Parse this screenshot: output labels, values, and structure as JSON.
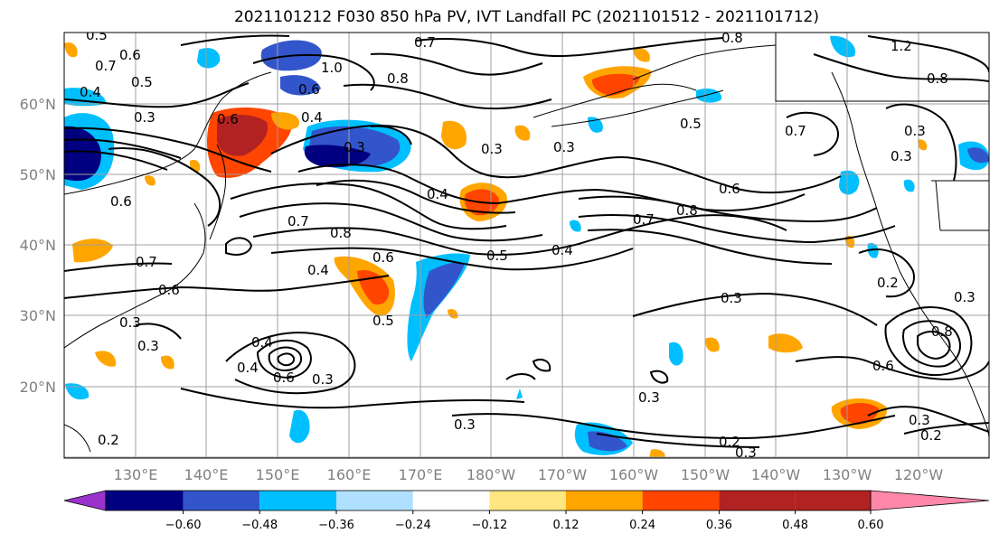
{
  "title": "2021101212 F030 850 hPa PV, IVT Landfall PC (2021101512 - 2021101712)",
  "lat_labels": [
    "60°N",
    "50°N",
    "40°N",
    "30°N",
    "20°N"
  ],
  "lon_labels": [
    "130°E",
    "140°E",
    "150°E",
    "160°E",
    "170°E",
    "180°W",
    "170°W",
    "160°W",
    "150°W",
    "140°W",
    "130°W",
    "120°W"
  ],
  "colorbar": {
    "tick_labels": [
      "−0.60",
      "−0.48",
      "−0.36",
      "−0.24",
      "−0.12",
      "0.12",
      "0.24",
      "0.36",
      "0.48",
      "0.60"
    ],
    "colors": [
      "#9933cc",
      "#000080",
      "#3355cc",
      "#00bfff",
      "#b0e0ff",
      "#ffffff",
      "#ffe680",
      "#ffa500",
      "#ff4500",
      "#b22222",
      "#ff88aa"
    ]
  },
  "contour_labels": [
    "0.5",
    "0.7",
    "0.6",
    "0.4",
    "0.5",
    "1.0",
    "0.6",
    "0.8",
    "0.7",
    "0.8",
    "1.2",
    "0.3",
    "0.6",
    "0.4",
    "0.3",
    "0.3",
    "0.3",
    "0.3",
    "0.5",
    "0.7",
    "0.3",
    "0.8",
    "0.6",
    "0.4",
    "0.6",
    "0.7",
    "0.8",
    "0.7",
    "0.8",
    "0.7",
    "0.4",
    "0.6",
    "0.5",
    "0.3",
    "0.4",
    "0.3",
    "0.4",
    "0.4",
    "0.5",
    "0.6",
    "0.3",
    "0.2",
    "0.3",
    "0.6",
    "0.8",
    "0.3",
    "0.3",
    "0.3",
    "0.2",
    "0.3",
    "0.3",
    "0.2",
    "0.2",
    "0.6"
  ]
}
